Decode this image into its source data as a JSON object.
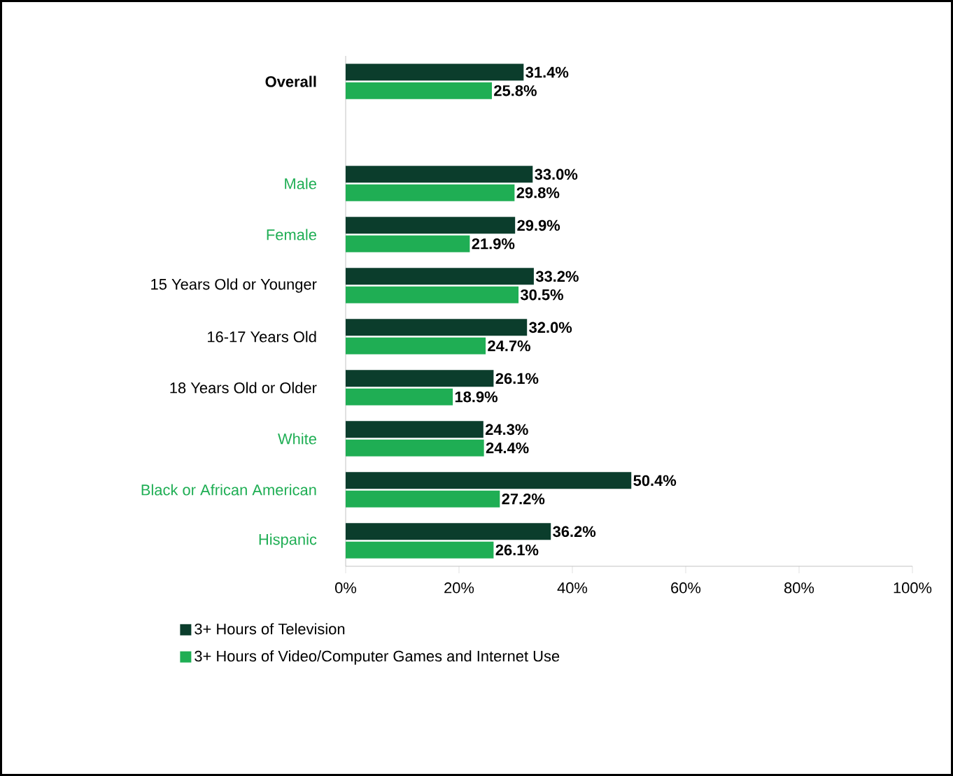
{
  "chart_data": {
    "type": "bar",
    "orientation": "horizontal",
    "categories": [
      "Overall",
      null,
      "Male",
      "Female",
      "15 Years Old or Younger",
      "16-17 Years Old",
      "18 Years Old or Older",
      "White",
      "Black or African American",
      "Hispanic"
    ],
    "series": [
      {
        "name": "3+ Hours of Television",
        "color": "#0b3d2c",
        "values": [
          31.4,
          null,
          33.0,
          29.9,
          33.2,
          32.0,
          26.1,
          24.3,
          50.4,
          36.2
        ],
        "value_labels": [
          "31.4%",
          null,
          "33.0%",
          "29.9%",
          "33.2%",
          "32.0%",
          "26.1%",
          "24.3%",
          "50.4%",
          "36.2%"
        ]
      },
      {
        "name": "3+ Hours of Video/Computer Games and Internet Use",
        "color": "#1fae54",
        "values": [
          25.8,
          null,
          29.8,
          21.9,
          30.5,
          24.7,
          18.9,
          24.4,
          27.2,
          26.1
        ],
        "value_labels": [
          "25.8%",
          null,
          "29.8%",
          "21.9%",
          "30.5%",
          "24.7%",
          "18.9%",
          "24.4%",
          "27.2%",
          "26.1%"
        ]
      }
    ],
    "xlim": [
      0,
      100
    ],
    "xticks": [
      {
        "value": 0,
        "label": "0%"
      },
      {
        "value": 20,
        "label": "20%"
      },
      {
        "value": 40,
        "label": "40%"
      },
      {
        "value": 60,
        "label": "60%"
      },
      {
        "value": 80,
        "label": "80%"
      },
      {
        "value": 100,
        "label": "100%"
      }
    ],
    "grid": false,
    "legend": "bottom"
  }
}
